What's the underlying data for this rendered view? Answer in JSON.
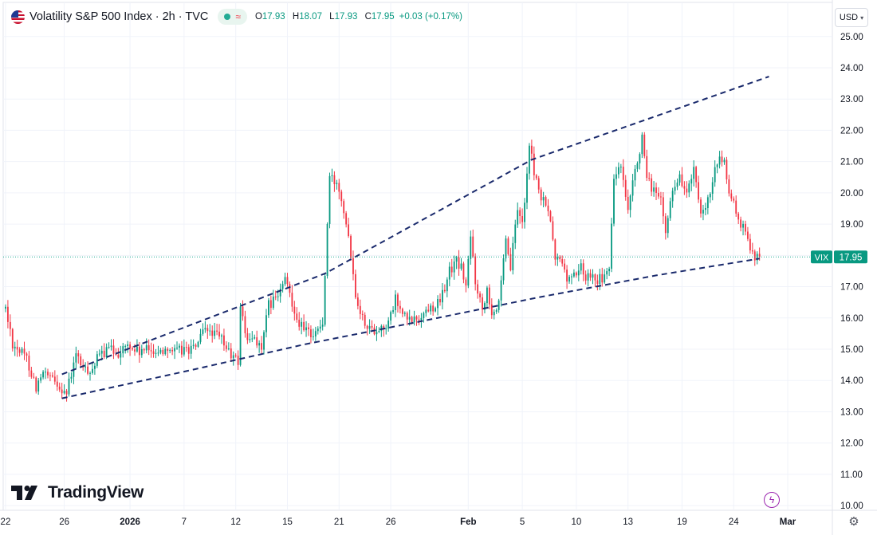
{
  "header": {
    "title": "Volatility S&P 500 Index · 2h · TVC",
    "open_label": "O",
    "open_value": "17.93",
    "high_label": "H",
    "high_value": "18.07",
    "low_label": "L",
    "low_value": "17.93",
    "close_label": "C",
    "close_value": "17.95",
    "change": "+0.03 (+0.17%)",
    "status_icons": [
      "market-status-dot-icon",
      "wave-icon"
    ]
  },
  "currency": "USD",
  "brand": "TradingView",
  "price_tag": {
    "symbol": "VIX",
    "value": "17.95"
  },
  "colors": {
    "up": "#089981",
    "down": "#f23645",
    "trendline": "#1a2a6c",
    "price_line": "#22ab94",
    "accent_purple": "#9c27b0",
    "tag_bg": "#089981"
  },
  "chart_data": {
    "type": "candlestick",
    "symbol": "VIX",
    "timeframe": "2h",
    "current_price": 17.95,
    "y_axis": {
      "ticks": [
        10,
        11,
        12,
        13,
        14,
        15,
        16,
        17,
        18,
        19,
        20,
        21,
        22,
        23,
        24,
        25
      ],
      "tick_labels": [
        "10.00",
        "11.00",
        "12.00",
        "13.00",
        "14.00",
        "15.00",
        "16.00",
        "17.00",
        "18.00",
        "19.00",
        "20.00",
        "21.00",
        "22.00",
        "23.00",
        "24.00",
        "25.00"
      ],
      "ylim": [
        9.85,
        25.3
      ]
    },
    "x_axis": {
      "labels": [
        "22",
        "26",
        "2026",
        "7",
        "12",
        "15",
        "21",
        "26",
        "Feb",
        "5",
        "10",
        "13",
        "19",
        "24",
        "Mar"
      ],
      "label_bars": [
        0,
        25,
        53,
        76,
        98,
        120,
        142,
        164,
        197,
        220,
        243,
        265,
        288,
        310,
        333
      ],
      "bold": [
        "2026",
        "Feb",
        "Mar"
      ],
      "bar_range": [
        -1,
        352
      ]
    },
    "ohlc_anchors": [
      [
        0,
        16.3
      ],
      [
        3,
        15.2
      ],
      [
        9,
        14.7
      ],
      [
        13,
        13.8
      ],
      [
        16,
        14.2
      ],
      [
        22,
        13.9
      ],
      [
        26,
        13.6
      ],
      [
        30,
        14.8
      ],
      [
        34,
        14.3
      ],
      [
        37,
        14.4
      ],
      [
        40,
        14.8
      ],
      [
        44,
        15.0
      ],
      [
        48,
        14.9
      ],
      [
        52,
        15.1
      ],
      [
        57,
        14.9
      ],
      [
        62,
        15.0
      ],
      [
        66,
        14.9
      ],
      [
        69,
        15.1
      ],
      [
        72,
        14.9
      ],
      [
        76,
        15.0
      ],
      [
        80,
        15.0
      ],
      [
        84,
        15.5
      ],
      [
        87,
        15.6
      ],
      [
        92,
        15.3
      ],
      [
        96,
        14.8
      ],
      [
        99,
        14.6
      ],
      [
        100,
        16.4
      ],
      [
        103,
        15.2
      ],
      [
        106,
        15.4
      ],
      [
        109,
        15.0
      ],
      [
        112,
        16.4
      ],
      [
        116,
        16.7
      ],
      [
        119,
        17.2
      ],
      [
        121,
        16.8
      ],
      [
        124,
        16.0
      ],
      [
        127,
        15.6
      ],
      [
        131,
        15.5
      ],
      [
        135,
        15.8
      ],
      [
        138,
        20.5
      ],
      [
        142,
        20.2
      ],
      [
        144,
        19.5
      ],
      [
        146,
        18.7
      ],
      [
        149,
        16.8
      ],
      [
        152,
        16.0
      ],
      [
        156,
        15.6
      ],
      [
        160,
        15.7
      ],
      [
        163,
        15.8
      ],
      [
        166,
        16.6
      ],
      [
        169,
        16.1
      ],
      [
        172,
        15.9
      ],
      [
        176,
        16.0
      ],
      [
        180,
        16.3
      ],
      [
        185,
        16.5
      ],
      [
        189,
        17.5
      ],
      [
        192,
        17.8
      ],
      [
        194,
        17.6
      ],
      [
        196,
        17.0
      ],
      [
        198,
        18.6
      ],
      [
        200,
        17.2
      ],
      [
        203,
        16.3
      ],
      [
        205,
        17.0
      ],
      [
        207,
        16.2
      ],
      [
        210,
        16.4
      ],
      [
        213,
        18.4
      ],
      [
        215,
        17.6
      ],
      [
        218,
        19.5
      ],
      [
        220,
        19.0
      ],
      [
        223,
        21.5
      ],
      [
        225,
        20.7
      ],
      [
        228,
        19.8
      ],
      [
        231,
        19.5
      ],
      [
        234,
        17.9
      ],
      [
        237,
        17.8
      ],
      [
        239,
        17.2
      ],
      [
        242,
        17.4
      ],
      [
        245,
        17.6
      ],
      [
        247,
        17.3
      ],
      [
        250,
        17.5
      ],
      [
        252,
        17.2
      ],
      [
        255,
        17.3
      ],
      [
        257,
        17.5
      ],
      [
        259,
        20.5
      ],
      [
        262,
        20.8
      ],
      [
        265,
        19.3
      ],
      [
        268,
        20.7
      ],
      [
        271,
        21.7
      ],
      [
        273,
        20.4
      ],
      [
        276,
        20.1
      ],
      [
        279,
        19.7
      ],
      [
        281,
        18.7
      ],
      [
        284,
        20.2
      ],
      [
        287,
        20.5
      ],
      [
        290,
        20.0
      ],
      [
        293,
        20.7
      ],
      [
        296,
        19.2
      ],
      [
        298,
        19.4
      ],
      [
        301,
        20.3
      ],
      [
        303,
        21.0
      ],
      [
        306,
        21.0
      ],
      [
        308,
        20.0
      ],
      [
        310,
        19.6
      ],
      [
        313,
        19.0
      ],
      [
        316,
        18.5
      ],
      [
        319,
        18.0
      ],
      [
        321,
        17.93
      ]
    ],
    "trendlines": [
      {
        "style": "dashed",
        "points": [
          [
            24,
            14.2
          ],
          [
            136,
            17.42
          ],
          [
            224,
            21.06
          ],
          [
            325,
            23.72
          ]
        ]
      },
      {
        "style": "dashed",
        "points": [
          [
            24,
            13.43
          ],
          [
            80,
            14.35
          ],
          [
            127,
            15.15
          ],
          [
            178,
            15.91
          ],
          [
            227,
            16.66
          ],
          [
            277,
            17.36
          ],
          [
            321,
            17.9
          ]
        ]
      }
    ]
  }
}
